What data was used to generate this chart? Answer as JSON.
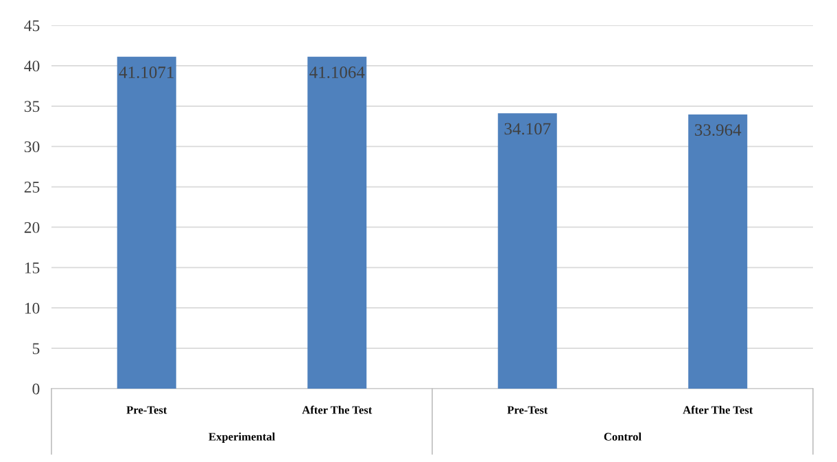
{
  "chart_data": {
    "type": "bar",
    "categories": [
      "Pre-Test",
      "After The Test",
      "Pre-Test",
      "After The Test"
    ],
    "values": [
      41.1071,
      41.1064,
      34.107,
      33.964
    ],
    "color": "#4f81bd",
    "ylim": [
      0,
      45
    ],
    "yticks": [
      0,
      5,
      10,
      15,
      20,
      25,
      30,
      35,
      40,
      45
    ],
    "grid": "y",
    "data_labels": true,
    "annotations": [
      "Experimental",
      "Control"
    ]
  }
}
